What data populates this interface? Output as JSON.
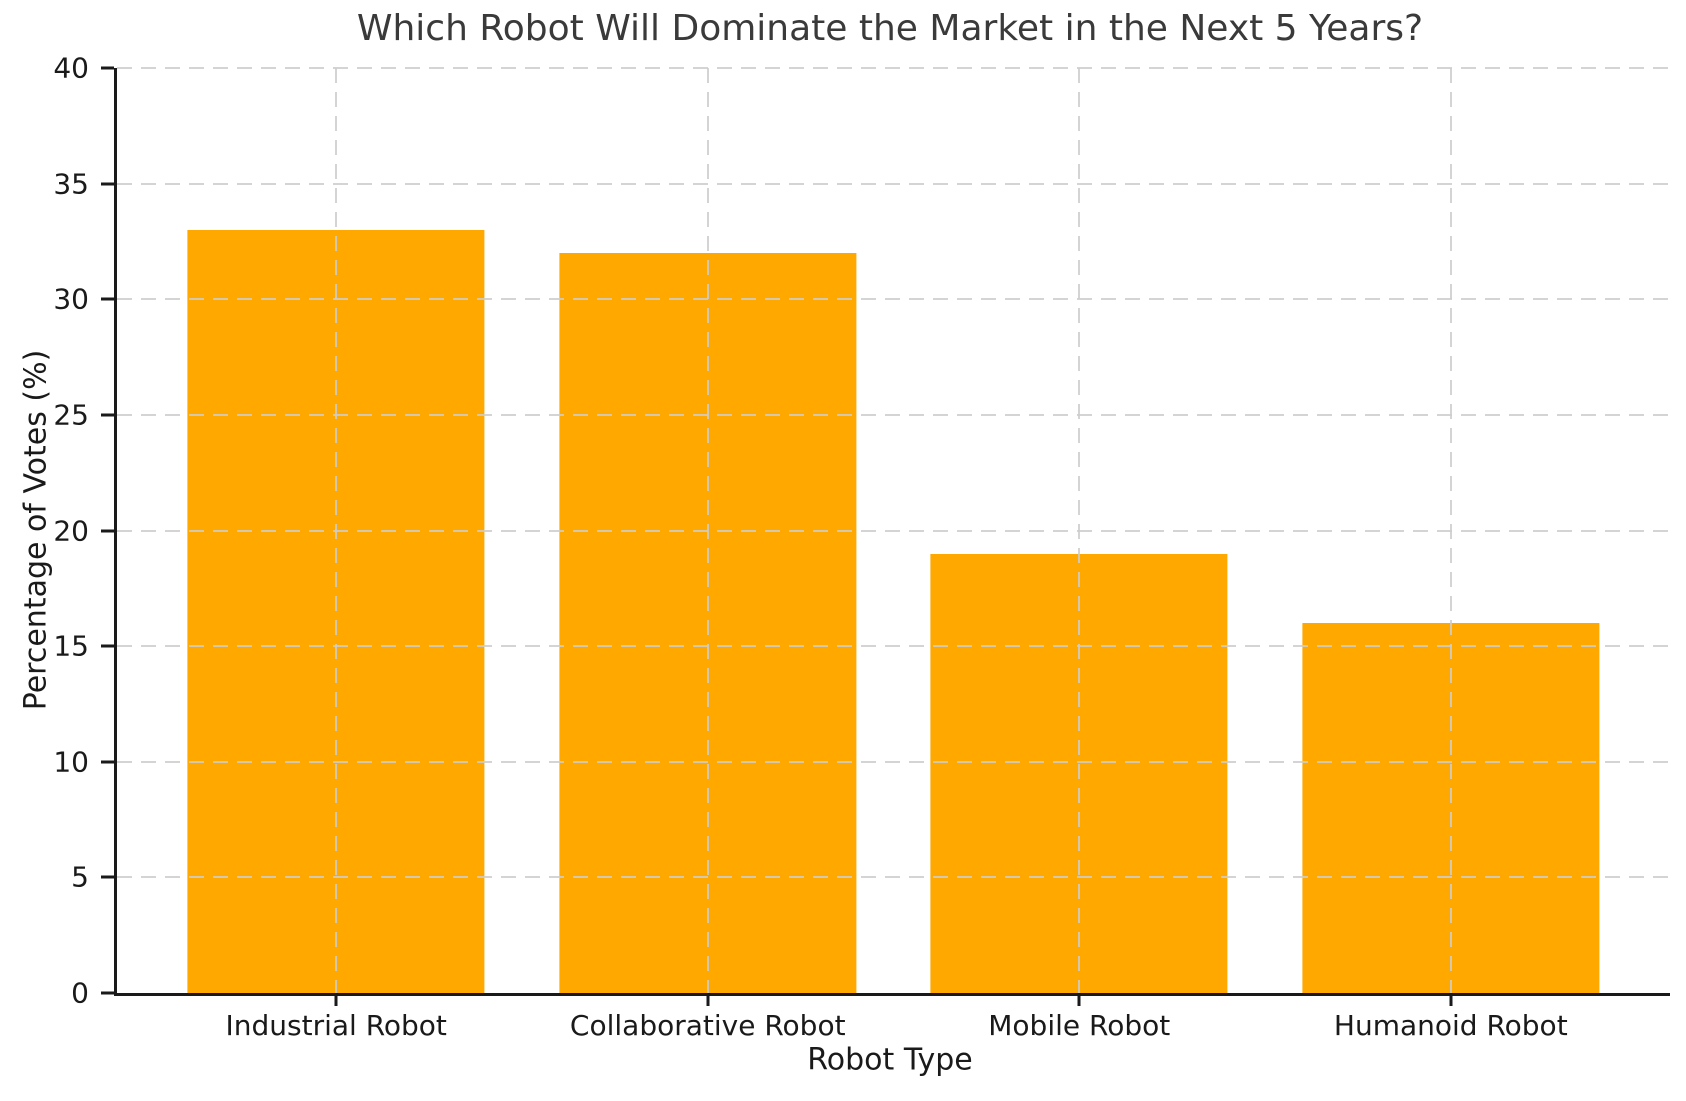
{
  "chart_data": {
    "type": "bar",
    "title": "Which Robot Will Dominate the Market in the Next 5 Years?",
    "xlabel": "Robot Type",
    "ylabel": "Percentage of Votes (%)",
    "categories": [
      "Industrial Robot",
      "Collaborative Robot",
      "Mobile Robot",
      "Humanoid Robot"
    ],
    "values": [
      33,
      32,
      19,
      16
    ],
    "ylim": [
      0,
      40
    ],
    "yticks": [
      0,
      5,
      10,
      15,
      20,
      25,
      30,
      35,
      40
    ],
    "bar_color": "#FFA800",
    "gridline_color": "#cdcdcd",
    "grid_style": "dashed",
    "axis_color": "#1a1a1a",
    "title_color": "#3a3a3a",
    "legend": "none"
  }
}
